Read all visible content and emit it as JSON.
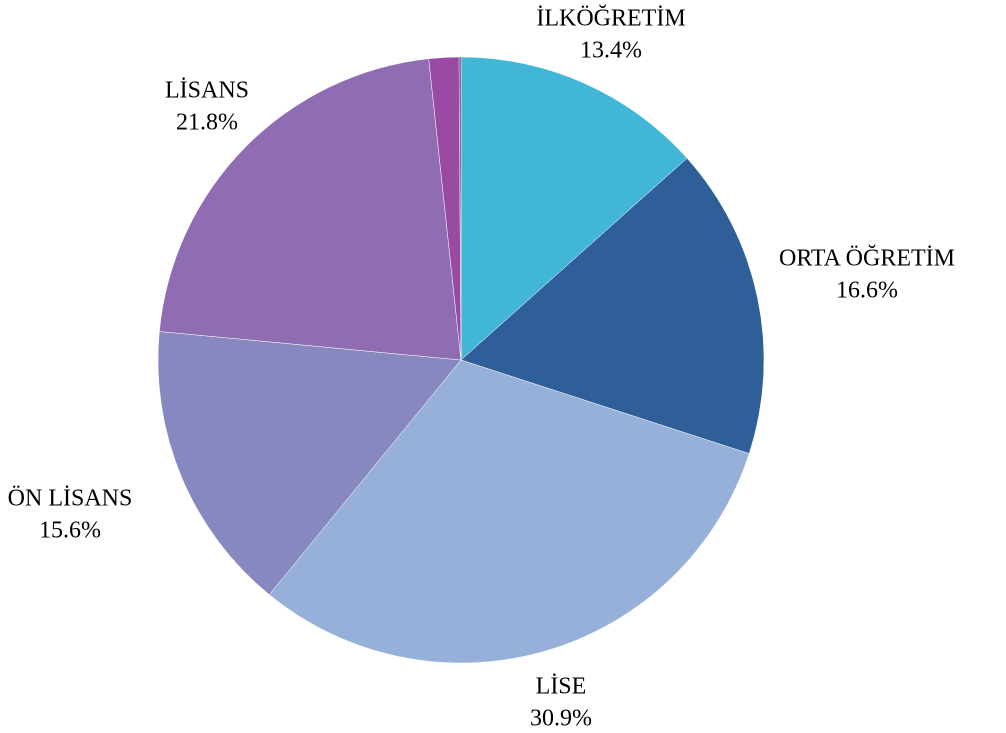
{
  "chart_data": {
    "type": "pie",
    "categories": [
      "İLKÖĞRETİM",
      "ORTA ÖĞRETİM",
      "LİSE",
      "ÖN LİSANS",
      "LİSANS",
      null,
      null
    ],
    "values": [
      13.4,
      16.6,
      30.9,
      15.6,
      21.8,
      1.6,
      0.1
    ],
    "value_labels": [
      "13.4%",
      "16.6%",
      "30.9%",
      "15.6%",
      "21.8%",
      null,
      null
    ],
    "colors": [
      "#42b6d6",
      "#2e5f98",
      "#97b0d9",
      "#8788c0",
      "#906cb2",
      "#9b4aa3",
      "#7a2a70"
    ]
  }
}
